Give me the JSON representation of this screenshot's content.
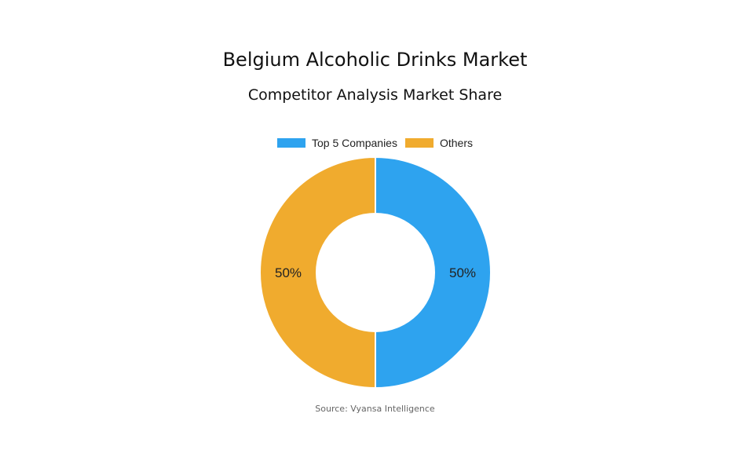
{
  "chart_data": {
    "type": "pie",
    "variant": "donut",
    "title": "Belgium Alcoholic Drinks Market",
    "subtitle": "Competitor Analysis Market Share",
    "legend_position": "top",
    "series": [
      {
        "name": "Top 5 Companies",
        "value": 50,
        "label": "50%",
        "color": "#2ea3ef"
      },
      {
        "name": "Others",
        "value": 50,
        "label": "50%",
        "color": "#f0ab2e"
      }
    ],
    "source": "Source: Vyansa Intelligence"
  }
}
